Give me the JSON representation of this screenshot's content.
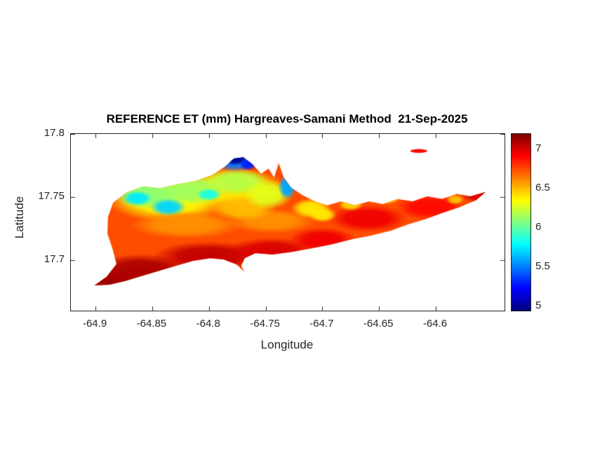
{
  "figure": {
    "background": "#ffffff",
    "axes_color": "#262626",
    "title_color": "#000000"
  },
  "chart_data": {
    "type": "heatmap",
    "title": "REFERENCE ET (mm) Hargreaves-Samani Method  21-Sep-2025",
    "xlabel": "Longitude",
    "ylabel": "Latitude",
    "units": "mm",
    "xlim": [
      -64.9217,
      -64.5394
    ],
    "ylim": [
      17.66,
      17.8
    ],
    "x_ticks": [
      -64.9,
      -64.85,
      -64.8,
      -64.75,
      -64.7,
      -64.65,
      -64.6
    ],
    "x_tick_labels": [
      "-64.9",
      "-64.85",
      "-64.8",
      "-64.75",
      "-64.7",
      "-64.65",
      "-64.6"
    ],
    "y_ticks": [
      17.8,
      17.75,
      17.7
    ],
    "y_tick_labels": [
      "17.8",
      "17.75",
      "17.7"
    ],
    "grid": false,
    "colorbar": {
      "position": "right",
      "colormap": "jet",
      "clim": [
        4.95,
        7.2
      ],
      "ticks": [
        7,
        6.5,
        6,
        5.5,
        5
      ],
      "tick_labels": [
        "7",
        "6.5",
        "6",
        "5.5",
        "5"
      ]
    },
    "base_value": 6.75,
    "island_outline": [
      [
        -64.901,
        17.68
      ],
      [
        -64.89,
        17.687
      ],
      [
        -64.8815,
        17.697
      ],
      [
        -64.885,
        17.709
      ],
      [
        -64.8895,
        17.721
      ],
      [
        -64.889,
        17.734
      ],
      [
        -64.8845,
        17.7455
      ],
      [
        -64.873,
        17.7535
      ],
      [
        -64.858,
        17.7585
      ],
      [
        -64.843,
        17.757
      ],
      [
        -64.8285,
        17.76
      ],
      [
        -64.8125,
        17.7625
      ],
      [
        -64.797,
        17.7675
      ],
      [
        -64.786,
        17.774
      ],
      [
        -64.778,
        17.7805
      ],
      [
        -64.7695,
        17.7815
      ],
      [
        -64.7615,
        17.776
      ],
      [
        -64.754,
        17.7685
      ],
      [
        -64.7475,
        17.7725
      ],
      [
        -64.7425,
        17.7655
      ],
      [
        -64.7385,
        17.777
      ],
      [
        -64.734,
        17.7655
      ],
      [
        -64.7275,
        17.7575
      ],
      [
        -64.7175,
        17.7515
      ],
      [
        -64.7065,
        17.7465
      ],
      [
        -64.6955,
        17.7435
      ],
      [
        -64.6835,
        17.7465
      ],
      [
        -64.6715,
        17.7435
      ],
      [
        -64.659,
        17.7465
      ],
      [
        -64.6465,
        17.7445
      ],
      [
        -64.6335,
        17.7485
      ],
      [
        -64.6205,
        17.7465
      ],
      [
        -64.6075,
        17.7505
      ],
      [
        -64.5945,
        17.7485
      ],
      [
        -64.5815,
        17.7525
      ],
      [
        -64.5695,
        17.7505
      ],
      [
        -64.556,
        17.754
      ],
      [
        -64.5645,
        17.7475
      ],
      [
        -64.579,
        17.742
      ],
      [
        -64.594,
        17.7375
      ],
      [
        -64.609,
        17.7325
      ],
      [
        -64.624,
        17.7285
      ],
      [
        -64.639,
        17.7235
      ],
      [
        -64.657,
        17.7195
      ],
      [
        -64.674,
        17.7165
      ],
      [
        -64.692,
        17.7125
      ],
      [
        -64.709,
        17.7095
      ],
      [
        -64.727,
        17.7065
      ],
      [
        -64.744,
        17.7045
      ],
      [
        -64.759,
        17.7055
      ],
      [
        -64.7685,
        17.7015
      ],
      [
        -64.7715,
        17.6955
      ],
      [
        -64.7685,
        17.6905
      ],
      [
        -64.7755,
        17.6965
      ],
      [
        -64.787,
        17.7005
      ],
      [
        -64.799,
        17.7015
      ],
      [
        -64.814,
        17.6995
      ],
      [
        -64.829,
        17.6955
      ],
      [
        -64.844,
        17.6915
      ],
      [
        -64.859,
        17.6875
      ],
      [
        -64.874,
        17.6835
      ],
      [
        -64.8875,
        17.6805
      ]
    ],
    "islet": {
      "center": [
        -64.615,
        17.7865
      ],
      "rx": 0.0075,
      "ry": 0.0015,
      "value": 6.9
    },
    "value_blobs": [
      {
        "lon": -64.835,
        "lat": 17.748,
        "rx": 0.055,
        "ry": 0.018,
        "v": 6.35
      },
      {
        "lon": -64.78,
        "lat": 17.757,
        "rx": 0.05,
        "ry": 0.016,
        "v": 6.4
      },
      {
        "lon": -64.82,
        "lat": 17.728,
        "rx": 0.05,
        "ry": 0.011,
        "v": 6.6
      },
      {
        "lon": -64.745,
        "lat": 17.731,
        "rx": 0.04,
        "ry": 0.01,
        "v": 6.6
      },
      {
        "lon": -64.77,
        "lat": 17.741,
        "rx": 0.03,
        "ry": 0.01,
        "v": 6.5
      },
      {
        "lon": -64.851,
        "lat": 17.752,
        "rx": 0.035,
        "ry": 0.012,
        "v": 6.1
      },
      {
        "lon": -64.815,
        "lat": 17.7555,
        "rx": 0.03,
        "ry": 0.012,
        "v": 6.15
      },
      {
        "lon": -64.776,
        "lat": 17.762,
        "rx": 0.03,
        "ry": 0.011,
        "v": 6.2
      },
      {
        "lon": -64.748,
        "lat": 17.752,
        "rx": 0.022,
        "ry": 0.012,
        "v": 6.3
      },
      {
        "lon": -64.71,
        "lat": 17.741,
        "rx": 0.018,
        "ry": 0.008,
        "v": 6.4
      },
      {
        "lon": -64.885,
        "lat": 17.683,
        "rx": 0.025,
        "ry": 0.012,
        "v": 7.15
      },
      {
        "lon": -64.86,
        "lat": 17.692,
        "rx": 0.045,
        "ry": 0.013,
        "v": 7.1
      },
      {
        "lon": -64.8,
        "lat": 17.703,
        "rx": 0.05,
        "ry": 0.012,
        "v": 7.05
      },
      {
        "lon": -64.745,
        "lat": 17.707,
        "rx": 0.04,
        "ry": 0.011,
        "v": 7.0
      },
      {
        "lon": -64.7,
        "lat": 17.716,
        "rx": 0.03,
        "ry": 0.01,
        "v": 6.95
      },
      {
        "lon": -64.66,
        "lat": 17.733,
        "rx": 0.035,
        "ry": 0.011,
        "v": 6.95
      },
      {
        "lon": -64.605,
        "lat": 17.742,
        "rx": 0.03,
        "ry": 0.01,
        "v": 6.9
      },
      {
        "lon": -64.562,
        "lat": 17.752,
        "rx": 0.016,
        "ry": 0.007,
        "v": 7.0
      },
      {
        "lon": -64.7,
        "lat": 17.736,
        "rx": 0.013,
        "ry": 0.006,
        "v": 6.4
      },
      {
        "lon": -64.675,
        "lat": 17.744,
        "rx": 0.011,
        "ry": 0.005,
        "v": 6.45
      },
      {
        "lon": -64.643,
        "lat": 17.749,
        "rx": 0.012,
        "ry": 0.005,
        "v": 6.5
      },
      {
        "lon": -64.583,
        "lat": 17.748,
        "rx": 0.008,
        "ry": 0.004,
        "v": 6.5
      },
      {
        "lon": -64.863,
        "lat": 17.749,
        "rx": 0.013,
        "ry": 0.006,
        "v": 5.75
      },
      {
        "lon": -64.836,
        "lat": 17.742,
        "rx": 0.016,
        "ry": 0.007,
        "v": 5.7
      },
      {
        "lon": -64.8,
        "lat": 17.752,
        "rx": 0.011,
        "ry": 0.005,
        "v": 5.85
      },
      {
        "lon": -64.731,
        "lat": 17.758,
        "rx": 0.008,
        "ry": 0.01,
        "v": 5.6
      },
      {
        "lon": -64.777,
        "lat": 17.779,
        "rx": 0.02,
        "ry": 0.009,
        "v": 5.5
      },
      {
        "lon": -64.777,
        "lat": 17.781,
        "rx": 0.012,
        "ry": 0.006,
        "v": 4.98
      },
      {
        "lon": -64.7655,
        "lat": 17.776,
        "rx": 0.008,
        "ry": 0.005,
        "v": 5.3
      }
    ]
  }
}
